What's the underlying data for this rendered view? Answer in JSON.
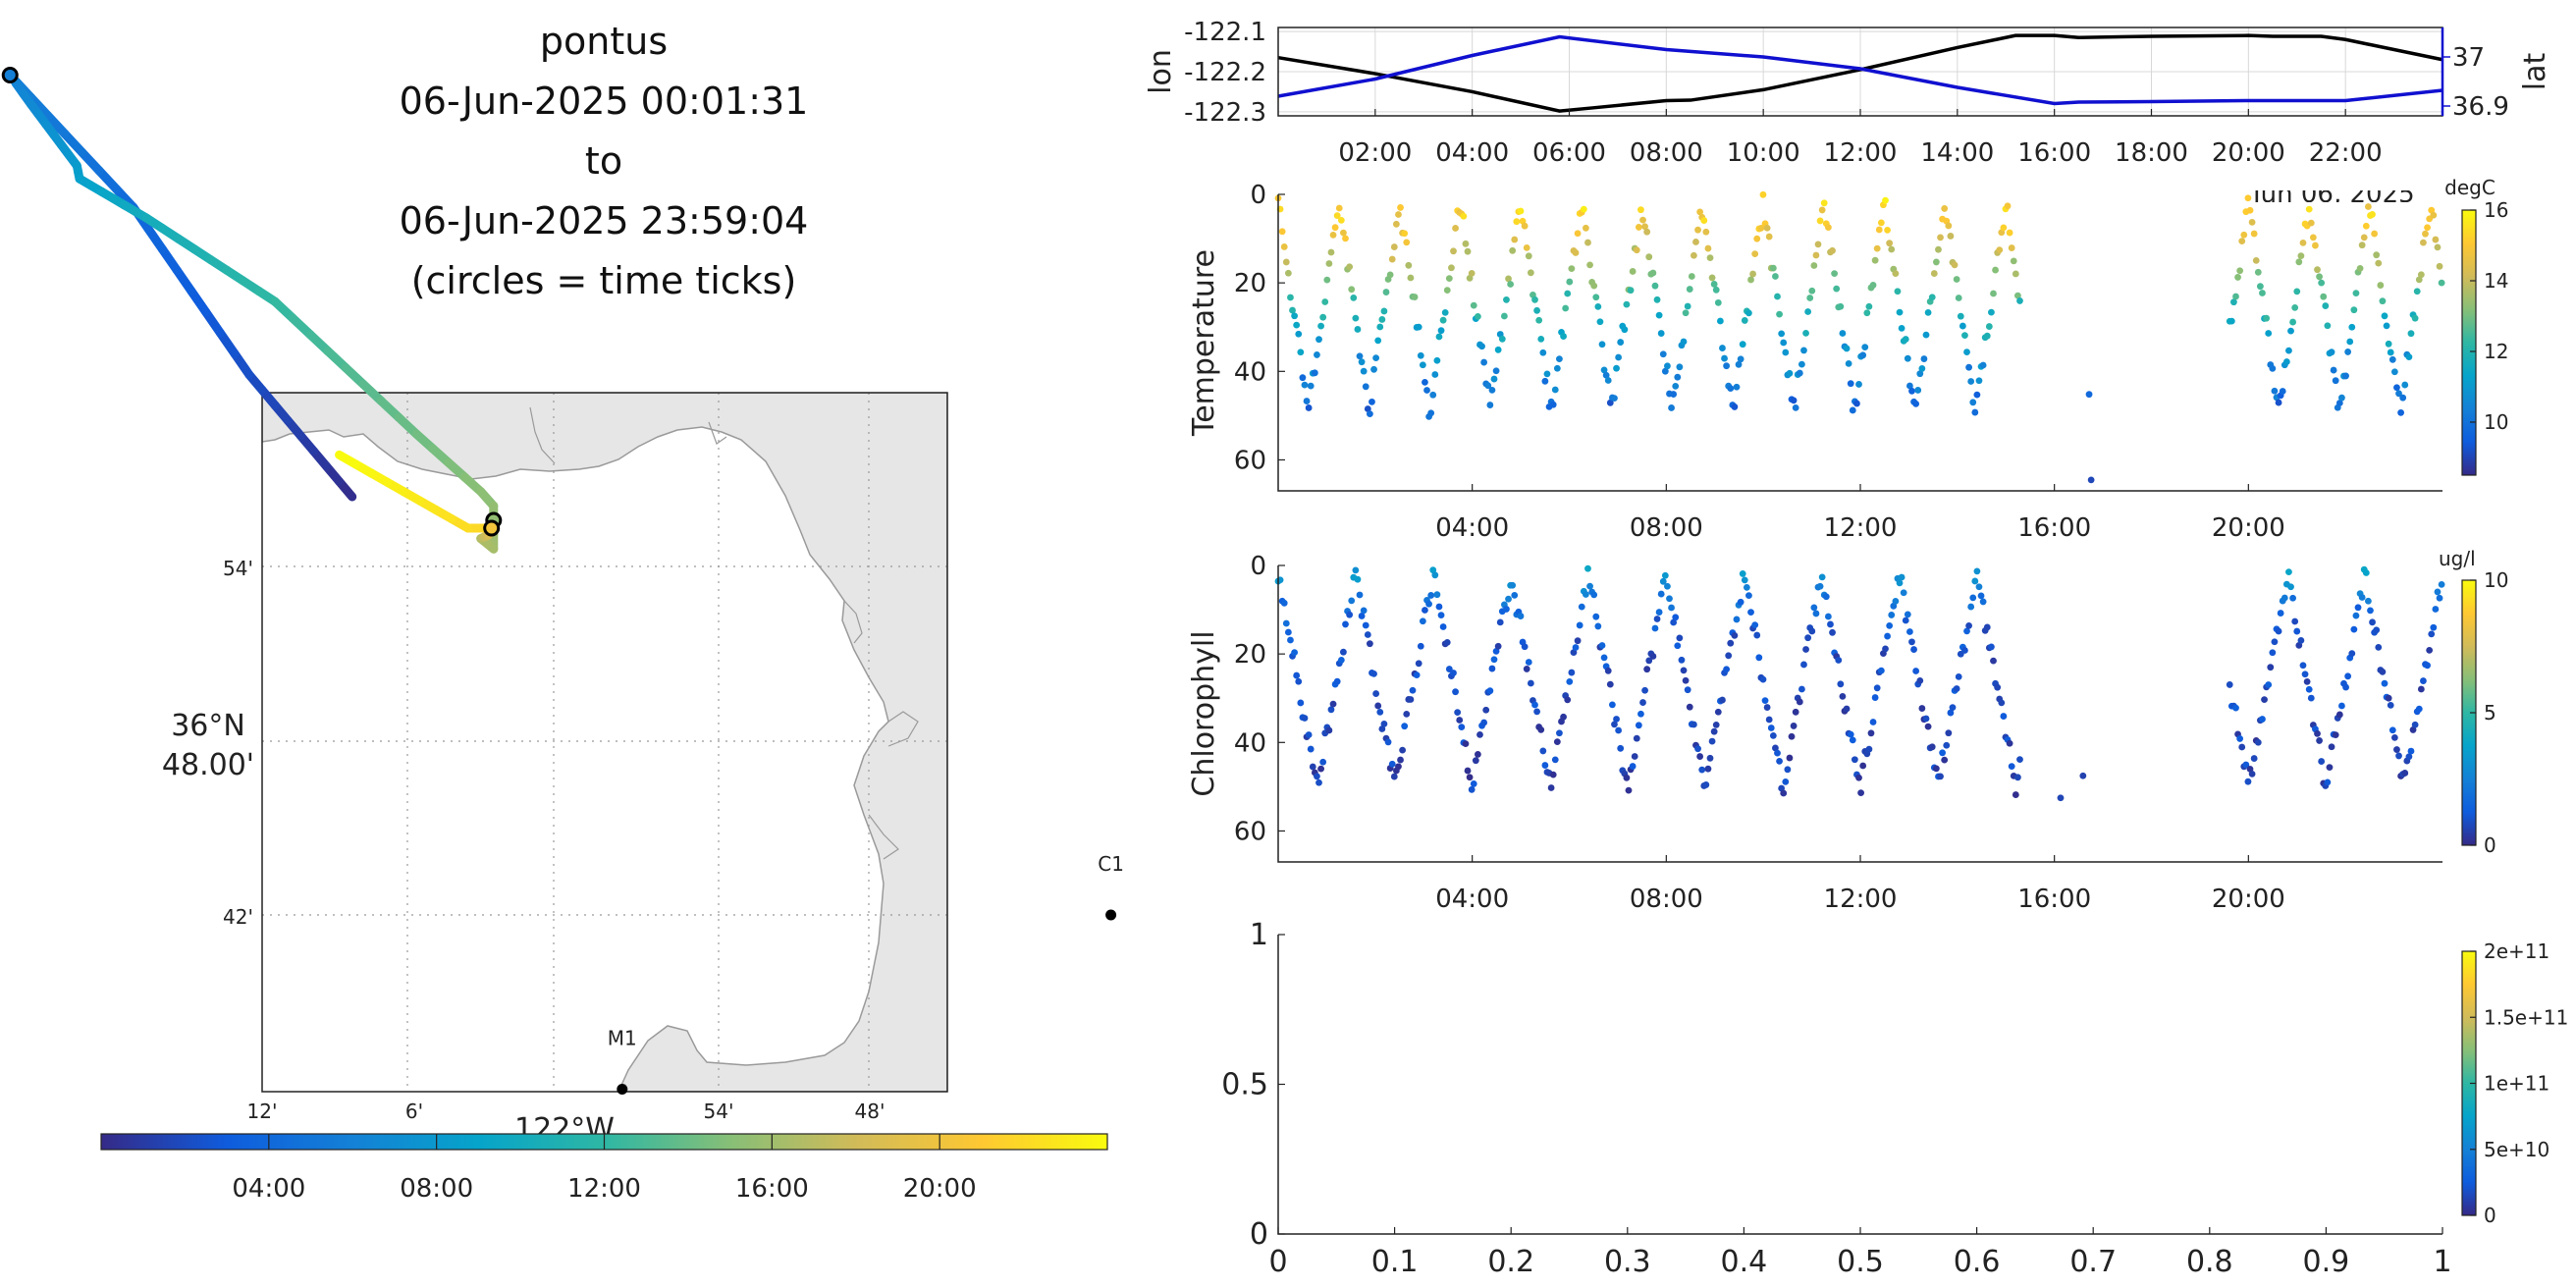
{
  "title": {
    "lines": [
      "pontus",
      "06-Jun-2025 00:01:31",
      "to",
      "06-Jun-2025 23:59:04",
      "(circles = time ticks)"
    ]
  },
  "colors": {
    "lon_line": "#000000",
    "lat_line": "#1010d0",
    "land": "#e6e6e6",
    "parula": [
      "#352a87",
      "#0f5cdd",
      "#1481d6",
      "#06a4ca",
      "#2eb7a4",
      "#87bf77",
      "#d1bb59",
      "#fec832",
      "#f9fb0e"
    ]
  },
  "chart_data": [
    {
      "id": "track-map",
      "type": "map",
      "x_tick_labels": [
        "12'",
        "6'",
        "54'",
        "48'"
      ],
      "x_unit_label": "122°W",
      "y_tick_labels": [
        "54'",
        "36°N\n48.00'",
        "42'"
      ],
      "stations": [
        {
          "name": "M1",
          "lon": -122.06,
          "lat": 36.75
        },
        {
          "name": "C1",
          "lon": -121.87,
          "lat": 36.8
        }
      ],
      "track_colorbar_ticks": [
        "04:00",
        "08:00",
        "12:00",
        "16:00",
        "20:00"
      ]
    },
    {
      "id": "lon-lat",
      "type": "line",
      "x_tick_labels": [
        "02:00",
        "04:00",
        "06:00",
        "08:00",
        "10:00",
        "12:00",
        "14:00",
        "16:00",
        "18:00",
        "20:00",
        "22:00"
      ],
      "xlim": [
        0,
        24
      ],
      "left_axis": {
        "label": "lon",
        "ylim": [
          -122.31,
          -122.09
        ],
        "ticks": [
          -122.3,
          -122.2,
          -122.1
        ]
      },
      "right_axis": {
        "label": "lat",
        "ylim": [
          36.88,
          37.06
        ],
        "ticks": [
          36.9,
          37
        ]
      },
      "series": [
        {
          "name": "lon",
          "axis": "left",
          "x": [
            0,
            2,
            4,
            5.8,
            6.5,
            8,
            8.5,
            10,
            12,
            14,
            15.2,
            16,
            16.5,
            18,
            20,
            20.5,
            21.5,
            22,
            23,
            24
          ],
          "y": [
            -122.165,
            -122.205,
            -122.25,
            -122.298,
            -122.29,
            -122.272,
            -122.271,
            -122.245,
            -122.195,
            -122.14,
            -122.11,
            -122.11,
            -122.115,
            -122.112,
            -122.11,
            -122.112,
            -122.112,
            -122.12,
            -122.145,
            -122.17
          ]
        },
        {
          "name": "lat",
          "axis": "right",
          "x": [
            0,
            2,
            4,
            5.8,
            8,
            10,
            12,
            14,
            16,
            16.5,
            18,
            20,
            22,
            24
          ],
          "y": [
            36.92,
            36.955,
            37.003,
            37.041,
            37.015,
            37,
            36.976,
            36.938,
            36.905,
            36.908,
            36.909,
            36.911,
            36.911,
            36.932
          ]
        }
      ]
    },
    {
      "id": "temperature",
      "type": "scatter",
      "ylabel": "Temperature",
      "x_tick_labels": [
        "04:00",
        "08:00",
        "12:00",
        "16:00",
        "20:00"
      ],
      "y_tick_labels": [
        "0",
        "20",
        "40",
        "60"
      ],
      "xlim": [
        0,
        24
      ],
      "ylim": [
        67,
        0
      ],
      "colorbar": {
        "unit": "degC",
        "ticks": [
          "10",
          "12",
          "14",
          "16"
        ],
        "range": [
          8.5,
          16
        ]
      },
      "partial_label": "Jun 06, 2025",
      "gaps": [
        [
          15.3,
          15.9
        ],
        [
          17.0,
          19.6
        ]
      ],
      "profile_period_h": 1.25,
      "profile_depth": 47,
      "sparse_window": [
        15.9,
        17.0
      ],
      "color_stops": [
        {
          "depth": 0,
          "value": 15.5
        },
        {
          "depth": 10,
          "value": 14.5
        },
        {
          "depth": 20,
          "value": 13.0
        },
        {
          "depth": 30,
          "value": 11.5
        },
        {
          "depth": 40,
          "value": 10.5
        },
        {
          "depth": 50,
          "value": 9.5
        },
        {
          "depth": 65,
          "value": 9.0
        }
      ]
    },
    {
      "id": "chlorophyll",
      "type": "scatter",
      "ylabel": "Chlorophyll",
      "x_tick_labels": [
        "04:00",
        "08:00",
        "12:00",
        "16:00",
        "20:00"
      ],
      "y_tick_labels": [
        "0",
        "20",
        "40",
        "60"
      ],
      "xlim": [
        0,
        24
      ],
      "ylim": [
        67,
        0
      ],
      "colorbar": {
        "unit": "ug/l",
        "ticks": [
          "0",
          "5",
          "10"
        ],
        "range": [
          0,
          10
        ]
      },
      "gaps": [
        [
          15.3,
          15.9
        ],
        [
          17.0,
          19.6
        ]
      ],
      "profile_period_h": 1.6,
      "profile_depth": 48,
      "sparse_window": [
        15.9,
        17.0
      ],
      "color_stops": [
        {
          "depth": 0,
          "value": 3.5
        },
        {
          "depth": 8,
          "value": 2.0
        },
        {
          "depth": 15,
          "value": 1.0
        },
        {
          "depth": 65,
          "value": 0.5
        }
      ]
    },
    {
      "id": "empty-panel",
      "type": "scatter",
      "x_tick_labels": [
        "0",
        "0.1",
        "0.2",
        "0.3",
        "0.4",
        "0.5",
        "0.6",
        "0.7",
        "0.8",
        "0.9",
        "1"
      ],
      "y_tick_labels": [
        "0",
        "0.5",
        "1"
      ],
      "xlim": [
        0,
        1
      ],
      "ylim": [
        0,
        1
      ],
      "colorbar": {
        "ticks": [
          "0",
          "5e+10",
          "1e+11",
          "1.5e+11",
          "2e+11"
        ]
      }
    }
  ]
}
